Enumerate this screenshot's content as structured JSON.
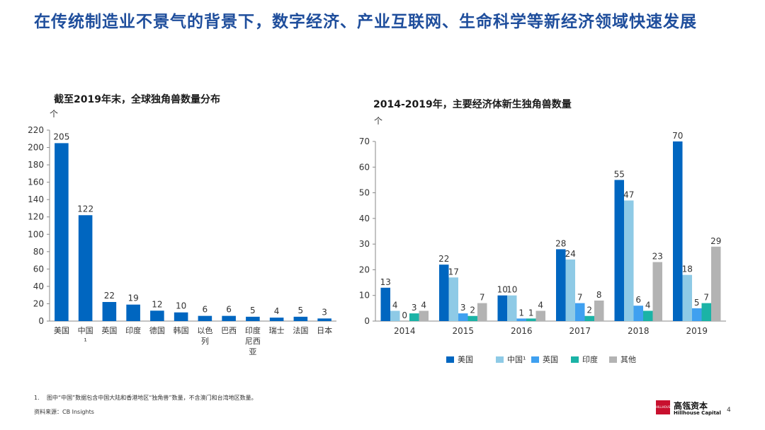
{
  "main_title": "在传统制造业不景气的背景下，数字经济、产业互联网、生命科学等新经济领域快速发展",
  "footnote": {
    "num": "1.",
    "text": "图中“中国”数据包含中国大陆和香港地区“独角兽”数量，不含澳门和台湾地区数量。"
  },
  "source": "资料来源：CB Insights",
  "logo": {
    "box_text": "HILLHOUSE",
    "cn": "高瓴资本",
    "en": "Hillhouse Capital"
  },
  "page_number": "4",
  "chart_data": [
    {
      "type": "bar",
      "title": "截至2019年末，全球独角兽数量分布",
      "unit": "个",
      "categories": [
        "美国",
        "中国¹",
        "英国",
        "印度",
        "德国",
        "韩国",
        "以色列",
        "巴西",
        "印度尼西亚",
        "瑞士",
        "法国",
        "日本"
      ],
      "values": [
        205,
        122,
        22,
        19,
        12,
        10,
        6,
        6,
        5,
        4,
        5,
        3
      ],
      "ylim": [
        0,
        220
      ],
      "yticks": [
        0,
        20,
        40,
        60,
        80,
        100,
        120,
        140,
        160,
        180,
        200,
        220
      ],
      "color": "#0066c0",
      "grid": false
    },
    {
      "type": "bar",
      "title": "2014-2019年，主要经济体新生独角兽数量",
      "unit": "个",
      "categories": [
        "2014",
        "2015",
        "2016",
        "2017",
        "2018",
        "2019"
      ],
      "series": [
        {
          "name": "美国",
          "color": "#0066c0",
          "values": [
            13,
            22,
            10,
            28,
            55,
            70
          ]
        },
        {
          "name": "中国¹",
          "color": "#8ecae6",
          "values": [
            4,
            17,
            10,
            24,
            47,
            18
          ]
        },
        {
          "name": "英国",
          "color": "#3fa0f0",
          "values": [
            0,
            3,
            1,
            7,
            6,
            5
          ]
        },
        {
          "name": "印度",
          "color": "#1bb3a6",
          "values": [
            3,
            2,
            1,
            2,
            4,
            7
          ]
        },
        {
          "name": "其他",
          "color": "#b3b3b3",
          "values": [
            4,
            7,
            4,
            8,
            23,
            29
          ]
        }
      ],
      "ylim": [
        0,
        70
      ],
      "yticks": [
        0,
        10,
        20,
        30,
        40,
        50,
        60,
        70
      ],
      "legend_position": "bottom",
      "grid": false
    }
  ]
}
